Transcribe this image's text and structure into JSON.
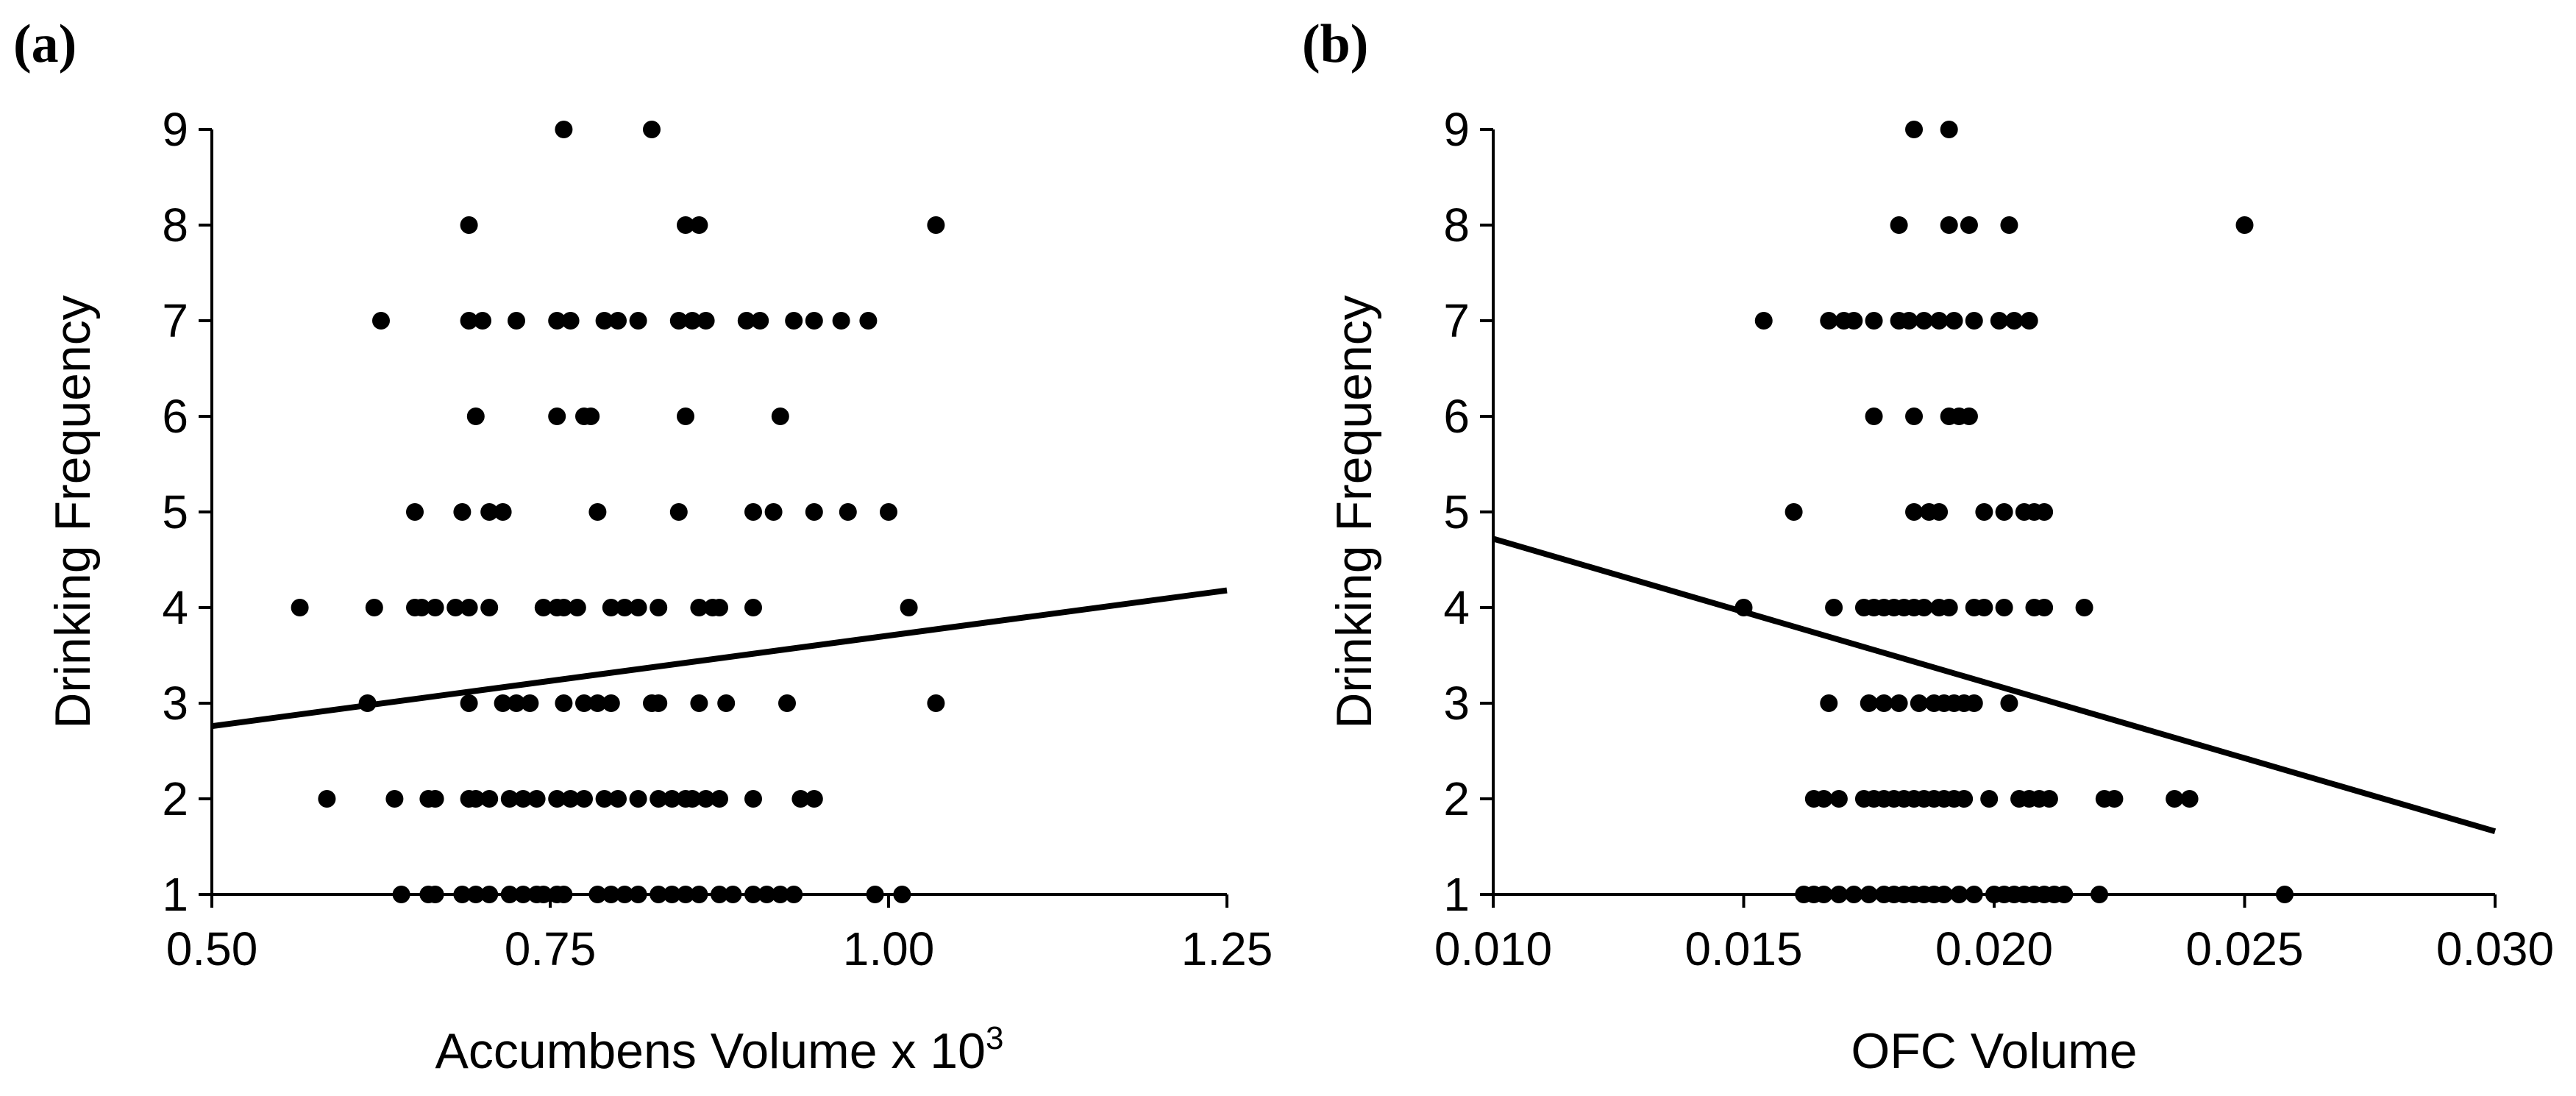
{
  "chart_data": [
    {
      "type": "scatter",
      "panel": "(a)",
      "xlabel": "Accumbens Volume x 10",
      "xlabel_superscript": "3",
      "ylabel": "Drinking Frequency",
      "xlim": [
        0.5,
        1.25
      ],
      "ylim": [
        1,
        9
      ],
      "xticks": [
        0.5,
        0.75,
        1.0,
        1.25
      ],
      "xtick_labels": [
        "0.50",
        "0.75",
        "1.00",
        "1.25"
      ],
      "yticks": [
        1,
        2,
        3,
        4,
        5,
        6,
        7,
        8,
        9
      ],
      "ytick_labels": [
        "1",
        "2",
        "3",
        "4",
        "5",
        "6",
        "7",
        "8",
        "9"
      ],
      "trendline": {
        "x": [
          0.5,
          1.25
        ],
        "y": [
          2.76,
          4.18
        ]
      },
      "points": [
        [
          0.76,
          9
        ],
        [
          0.825,
          9
        ],
        [
          0.69,
          8
        ],
        [
          0.85,
          8
        ],
        [
          0.86,
          8
        ],
        [
          1.035,
          8
        ],
        [
          0.625,
          7
        ],
        [
          0.69,
          7
        ],
        [
          0.7,
          7
        ],
        [
          0.725,
          7
        ],
        [
          0.755,
          7
        ],
        [
          0.765,
          7
        ],
        [
          0.79,
          7
        ],
        [
          0.8,
          7
        ],
        [
          0.815,
          7
        ],
        [
          0.845,
          7
        ],
        [
          0.855,
          7
        ],
        [
          0.865,
          7
        ],
        [
          0.895,
          7
        ],
        [
          0.905,
          7
        ],
        [
          0.93,
          7
        ],
        [
          0.945,
          7
        ],
        [
          0.965,
          7
        ],
        [
          0.985,
          7
        ],
        [
          0.695,
          6
        ],
        [
          0.755,
          6
        ],
        [
          0.775,
          6
        ],
        [
          0.78,
          6
        ],
        [
          0.85,
          6
        ],
        [
          0.92,
          6
        ],
        [
          0.65,
          5
        ],
        [
          0.685,
          5
        ],
        [
          0.705,
          5
        ],
        [
          0.715,
          5
        ],
        [
          0.785,
          5
        ],
        [
          0.845,
          5
        ],
        [
          0.9,
          5
        ],
        [
          0.915,
          5
        ],
        [
          0.945,
          5
        ],
        [
          0.97,
          5
        ],
        [
          1.0,
          5
        ],
        [
          0.565,
          4
        ],
        [
          0.62,
          4
        ],
        [
          0.65,
          4
        ],
        [
          0.655,
          4
        ],
        [
          0.665,
          4
        ],
        [
          0.68,
          4
        ],
        [
          0.69,
          4
        ],
        [
          0.705,
          4
        ],
        [
          0.745,
          4
        ],
        [
          0.755,
          4
        ],
        [
          0.76,
          4
        ],
        [
          0.77,
          4
        ],
        [
          0.795,
          4
        ],
        [
          0.805,
          4
        ],
        [
          0.815,
          4
        ],
        [
          0.83,
          4
        ],
        [
          0.86,
          4
        ],
        [
          0.87,
          4
        ],
        [
          0.875,
          4
        ],
        [
          0.9,
          4
        ],
        [
          1.015,
          4
        ],
        [
          0.615,
          3
        ],
        [
          0.69,
          3
        ],
        [
          0.715,
          3
        ],
        [
          0.725,
          3
        ],
        [
          0.735,
          3
        ],
        [
          0.76,
          3
        ],
        [
          0.775,
          3
        ],
        [
          0.785,
          3
        ],
        [
          0.795,
          3
        ],
        [
          0.825,
          3
        ],
        [
          0.83,
          3
        ],
        [
          0.86,
          3
        ],
        [
          0.88,
          3
        ],
        [
          0.925,
          3
        ],
        [
          1.035,
          3
        ],
        [
          0.585,
          2
        ],
        [
          0.635,
          2
        ],
        [
          0.66,
          2
        ],
        [
          0.665,
          2
        ],
        [
          0.69,
          2
        ],
        [
          0.695,
          2
        ],
        [
          0.705,
          2
        ],
        [
          0.72,
          2
        ],
        [
          0.73,
          2
        ],
        [
          0.74,
          2
        ],
        [
          0.755,
          2
        ],
        [
          0.765,
          2
        ],
        [
          0.775,
          2
        ],
        [
          0.79,
          2
        ],
        [
          0.8,
          2
        ],
        [
          0.815,
          2
        ],
        [
          0.83,
          2
        ],
        [
          0.84,
          2
        ],
        [
          0.85,
          2
        ],
        [
          0.855,
          2
        ],
        [
          0.865,
          2
        ],
        [
          0.875,
          2
        ],
        [
          0.9,
          2
        ],
        [
          0.935,
          2
        ],
        [
          0.945,
          2
        ],
        [
          0.64,
          1
        ],
        [
          0.66,
          1
        ],
        [
          0.665,
          1
        ],
        [
          0.685,
          1
        ],
        [
          0.695,
          1
        ],
        [
          0.705,
          1
        ],
        [
          0.72,
          1
        ],
        [
          0.73,
          1
        ],
        [
          0.74,
          1
        ],
        [
          0.745,
          1
        ],
        [
          0.755,
          1
        ],
        [
          0.76,
          1
        ],
        [
          0.785,
          1
        ],
        [
          0.795,
          1
        ],
        [
          0.805,
          1
        ],
        [
          0.815,
          1
        ],
        [
          0.83,
          1
        ],
        [
          0.84,
          1
        ],
        [
          0.85,
          1
        ],
        [
          0.86,
          1
        ],
        [
          0.875,
          1
        ],
        [
          0.885,
          1
        ],
        [
          0.9,
          1
        ],
        [
          0.91,
          1
        ],
        [
          0.92,
          1
        ],
        [
          0.93,
          1
        ],
        [
          0.99,
          1
        ],
        [
          1.01,
          1
        ]
      ]
    },
    {
      "type": "scatter",
      "panel": "(b)",
      "xlabel": "OFC Volume",
      "ylabel": "Drinking Frequency",
      "xlim": [
        0.01,
        0.03
      ],
      "ylim": [
        1,
        9
      ],
      "xticks": [
        0.01,
        0.015,
        0.02,
        0.025,
        0.03
      ],
      "xtick_labels": [
        "0.010",
        "0.015",
        "0.020",
        "0.025",
        "0.030"
      ],
      "yticks": [
        1,
        2,
        3,
        4,
        5,
        6,
        7,
        8,
        9
      ],
      "ytick_labels": [
        "1",
        "2",
        "3",
        "4",
        "5",
        "6",
        "7",
        "8",
        "9"
      ],
      "trendline": {
        "x": [
          0.01,
          0.03
        ],
        "y": [
          4.72,
          1.66
        ]
      },
      "points": [
        [
          0.0184,
          9
        ],
        [
          0.0191,
          9
        ],
        [
          0.0181,
          8
        ],
        [
          0.0191,
          8
        ],
        [
          0.0195,
          8
        ],
        [
          0.0203,
          8
        ],
        [
          0.025,
          8
        ],
        [
          0.0154,
          7
        ],
        [
          0.0167,
          7
        ],
        [
          0.017,
          7
        ],
        [
          0.0172,
          7
        ],
        [
          0.0176,
          7
        ],
        [
          0.0181,
          7
        ],
        [
          0.0183,
          7
        ],
        [
          0.0186,
          7
        ],
        [
          0.0189,
          7
        ],
        [
          0.0192,
          7
        ],
        [
          0.0196,
          7
        ],
        [
          0.0201,
          7
        ],
        [
          0.0204,
          7
        ],
        [
          0.0207,
          7
        ],
        [
          0.0176,
          6
        ],
        [
          0.0184,
          6
        ],
        [
          0.0191,
          6
        ],
        [
          0.0193,
          6
        ],
        [
          0.0195,
          6
        ],
        [
          0.016,
          5
        ],
        [
          0.0184,
          5
        ],
        [
          0.0187,
          5
        ],
        [
          0.0189,
          5
        ],
        [
          0.0198,
          5
        ],
        [
          0.0202,
          5
        ],
        [
          0.0206,
          5
        ],
        [
          0.0208,
          5
        ],
        [
          0.021,
          5
        ],
        [
          0.015,
          4
        ],
        [
          0.0168,
          4
        ],
        [
          0.0174,
          4
        ],
        [
          0.0176,
          4
        ],
        [
          0.0178,
          4
        ],
        [
          0.018,
          4
        ],
        [
          0.0182,
          4
        ],
        [
          0.0184,
          4
        ],
        [
          0.0186,
          4
        ],
        [
          0.0189,
          4
        ],
        [
          0.0191,
          4
        ],
        [
          0.0196,
          4
        ],
        [
          0.0198,
          4
        ],
        [
          0.0202,
          4
        ],
        [
          0.0208,
          4
        ],
        [
          0.021,
          4
        ],
        [
          0.0218,
          4
        ],
        [
          0.0167,
          3
        ],
        [
          0.0175,
          3
        ],
        [
          0.0178,
          3
        ],
        [
          0.0181,
          3
        ],
        [
          0.0185,
          3
        ],
        [
          0.0188,
          3
        ],
        [
          0.019,
          3
        ],
        [
          0.0192,
          3
        ],
        [
          0.0194,
          3
        ],
        [
          0.0196,
          3
        ],
        [
          0.0203,
          3
        ],
        [
          0.0164,
          2
        ],
        [
          0.0166,
          2
        ],
        [
          0.0169,
          2
        ],
        [
          0.0174,
          2
        ],
        [
          0.0176,
          2
        ],
        [
          0.0178,
          2
        ],
        [
          0.018,
          2
        ],
        [
          0.0182,
          2
        ],
        [
          0.0184,
          2
        ],
        [
          0.0186,
          2
        ],
        [
          0.0188,
          2
        ],
        [
          0.019,
          2
        ],
        [
          0.0192,
          2
        ],
        [
          0.0194,
          2
        ],
        [
          0.0199,
          2
        ],
        [
          0.0205,
          2
        ],
        [
          0.0207,
          2
        ],
        [
          0.0209,
          2
        ],
        [
          0.0211,
          2
        ],
        [
          0.0222,
          2
        ],
        [
          0.0224,
          2
        ],
        [
          0.0236,
          2
        ],
        [
          0.0239,
          2
        ],
        [
          0.0162,
          1
        ],
        [
          0.0164,
          1
        ],
        [
          0.0166,
          1
        ],
        [
          0.0169,
          1
        ],
        [
          0.0172,
          1
        ],
        [
          0.0175,
          1
        ],
        [
          0.0178,
          1
        ],
        [
          0.018,
          1
        ],
        [
          0.0182,
          1
        ],
        [
          0.0184,
          1
        ],
        [
          0.0186,
          1
        ],
        [
          0.0188,
          1
        ],
        [
          0.019,
          1
        ],
        [
          0.0193,
          1
        ],
        [
          0.0196,
          1
        ],
        [
          0.02,
          1
        ],
        [
          0.0202,
          1
        ],
        [
          0.0204,
          1
        ],
        [
          0.0206,
          1
        ],
        [
          0.0208,
          1
        ],
        [
          0.021,
          1
        ],
        [
          0.0212,
          1
        ],
        [
          0.0214,
          1
        ],
        [
          0.0221,
          1
        ],
        [
          0.0258,
          1
        ]
      ]
    }
  ]
}
